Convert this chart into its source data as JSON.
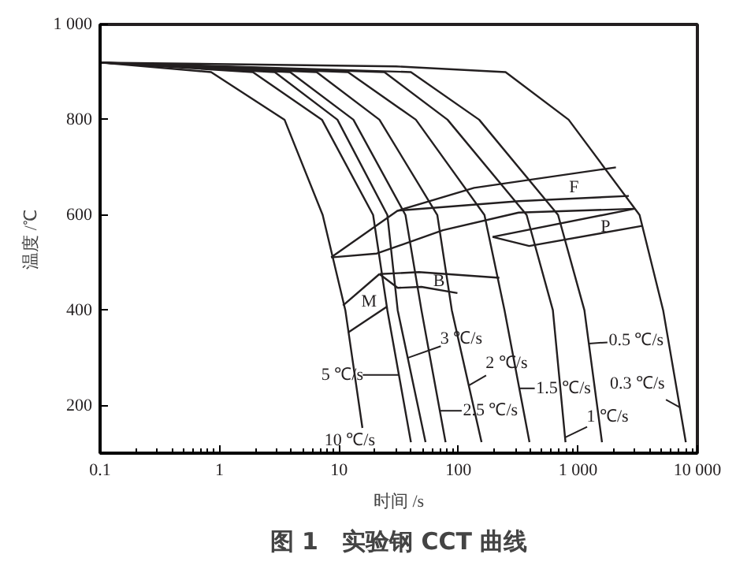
{
  "chart_data": {
    "type": "line",
    "title": "图 1　实验钢 CCT 曲线",
    "xlabel": "时间 /s",
    "ylabel": "温度 /℃",
    "log": "x",
    "line_style": "solid",
    "xlim": [
      0.1,
      10000
    ],
    "ylim": [
      100,
      1000
    ],
    "xticks": [
      0.1,
      1,
      10,
      100,
      {
        "value": 1000,
        "label": "1 000"
      },
      {
        "value": 10000,
        "label": "10 000"
      }
    ],
    "yticks": [
      200,
      400,
      600,
      800,
      {
        "value": 1000,
        "label": "1 000"
      }
    ],
    "series": [
      {
        "color": "#231f20",
        "x": [
          0.1,
          0.85,
          3.5,
          7.3,
          11.3,
          15.7
        ],
        "values": [
          920,
          900,
          800,
          600,
          400,
          153
        ]
      },
      {
        "color": "#231f20",
        "x": [
          0.1,
          1.9,
          7.2,
          19.3,
          25.4,
          40
        ],
        "values": [
          920,
          900,
          800,
          600,
          400,
          123
        ]
      },
      {
        "color": "#231f20",
        "x": [
          0.1,
          2.9,
          9.7,
          25.4,
          31,
          53
        ],
        "values": [
          920,
          900,
          800,
          600,
          400,
          123
        ]
      },
      {
        "color": "#231f20",
        "x": [
          0.1,
          3.9,
          13.2,
          36,
          49,
          78
        ],
        "values": [
          920,
          900,
          800,
          600,
          400,
          123
        ]
      },
      {
        "color": "#231f20",
        "x": [
          0.1,
          6.5,
          21.8,
          66.5,
          88,
          156
        ],
        "values": [
          920,
          900,
          800,
          600,
          400,
          123
        ]
      },
      {
        "color": "#231f20",
        "x": [
          0.1,
          11.9,
          44,
          165,
          243,
          393
        ],
        "values": [
          920,
          900,
          800,
          600,
          400,
          123
        ]
      },
      {
        "color": "#231f20",
        "x": [
          0.1,
          24,
          81,
          372,
          617,
          787
        ],
        "values": [
          920,
          900,
          800,
          600,
          400,
          123
        ]
      },
      {
        "color": "#231f20",
        "x": [
          0.1,
          40,
          149,
          682,
          1133,
          1590
        ],
        "values": [
          920,
          900,
          800,
          600,
          400,
          123
        ]
      },
      {
        "color": "#231f20",
        "x": [
          0.1,
          30,
          248,
          836,
          3280,
          5170,
          8000
        ],
        "values": [
          920,
          912,
          900,
          800,
          600,
          400,
          123
        ]
      },
      {
        "color": "#231f20",
        "x": [
          8.6,
          31,
          135,
          2080
        ],
        "values": [
          511,
          609,
          657,
          700
        ]
      },
      {
        "color": "#231f20",
        "x": [
          31,
          319,
          2670
        ],
        "values": [
          609,
          629,
          640
        ]
      },
      {
        "color": "#231f20",
        "x": [
          8.6,
          20.7,
          74,
          319,
          2970
        ],
        "values": [
          511,
          519,
          568,
          605,
          613
        ]
      },
      {
        "color": "#231f20",
        "x": [
          193,
          2970
        ],
        "values": [
          554,
          613
        ]
      },
      {
        "color": "#231f20",
        "x": [
          193,
          391,
          3450
        ],
        "values": [
          554,
          535,
          577
        ]
      },
      {
        "color": "#231f20",
        "x": [
          21.8,
          46.7,
          220
        ],
        "values": [
          476,
          480,
          468
        ]
      },
      {
        "color": "#231f20",
        "x": [
          21.8,
          31,
          49,
          98
        ],
        "values": [
          476,
          447,
          449,
          436
        ]
      },
      {
        "color": "#231f20",
        "x": [
          10.8,
          21.8
        ],
        "values": [
          410,
          476
        ]
      },
      {
        "color": "#231f20",
        "x": [
          11.9,
          25.4
        ],
        "values": [
          353,
          408
        ]
      }
    ],
    "annotations": [
      {
        "text": "10 ℃/s",
        "x": 15.7,
        "y": 153
      },
      {
        "text": "5 ℃/s",
        "x": 31.8,
        "y": 264
      },
      {
        "text": "3 ℃/s",
        "x": 37.6,
        "y": 300
      },
      {
        "text": "2 ℃/s",
        "x": 122,
        "y": 242
      },
      {
        "text": "2.5 ℃/s",
        "x": 70,
        "y": 189
      },
      {
        "text": "1.5 ℃/s",
        "x": 323,
        "y": 236
      },
      {
        "text": "1 ℃/s",
        "x": 780,
        "y": 133
      },
      {
        "text": "0.5 ℃/s",
        "x": 1234,
        "y": 330
      },
      {
        "text": "0.3 ℃/s",
        "x": 7130,
        "y": 196
      },
      {
        "text": "F",
        "x": 925,
        "y": 687
      },
      {
        "text": "P",
        "x": 1698,
        "y": 574
      },
      {
        "text": "B",
        "x": 68.6,
        "y": 461
      },
      {
        "text": "M",
        "x": 17.8,
        "y": 457
      }
    ]
  }
}
